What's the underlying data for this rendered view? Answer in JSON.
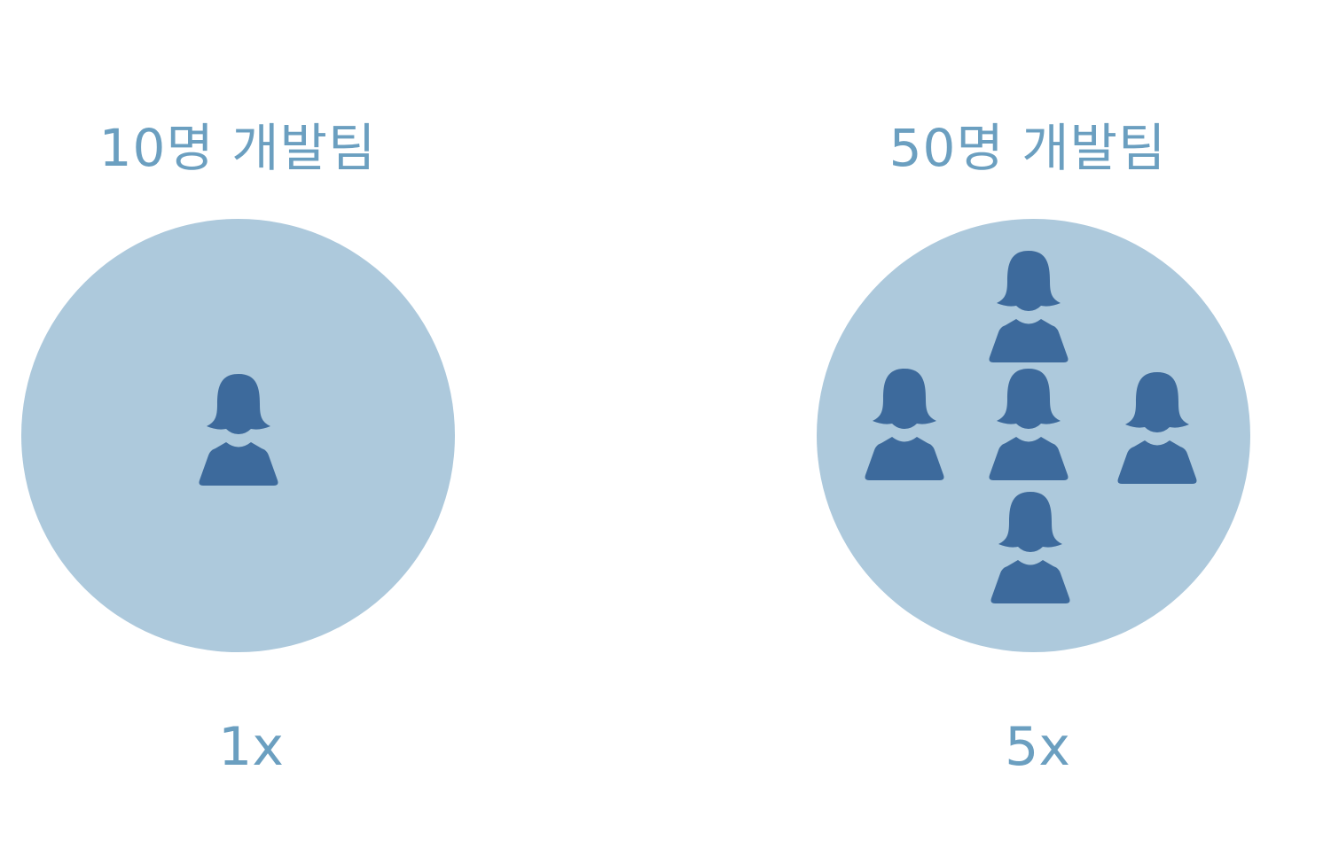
{
  "colors": {
    "circle": "#adc9dc",
    "person": "#3d6a9c",
    "text": "#6b9fc0",
    "background": "#ffffff"
  },
  "teams": [
    {
      "title": "10명 개발팀",
      "multiplier": "1x",
      "person_count": 1,
      "icon": "person-icon"
    },
    {
      "title": "50명 개발팀",
      "multiplier": "5x",
      "person_count": 5,
      "icon": "person-icon"
    }
  ]
}
